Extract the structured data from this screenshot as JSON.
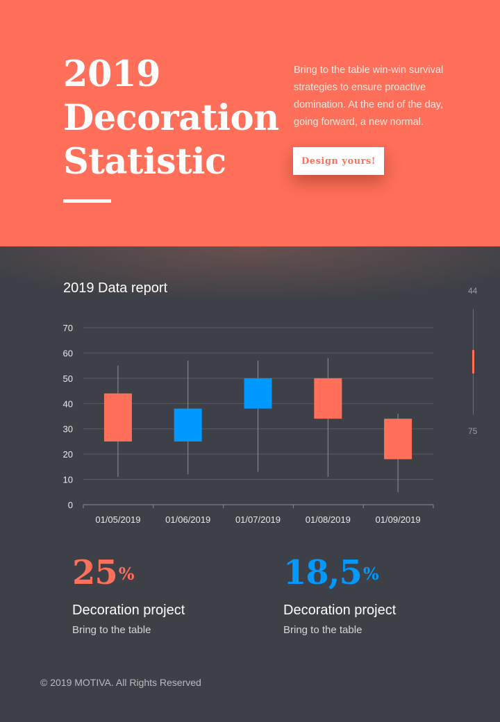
{
  "hero": {
    "title_lines": [
      "2019",
      "Decoration",
      "Statistic"
    ],
    "description": "Bring to the table win-win survival strategies to ensure proactive domination. At the end of the day, going forward, a new normal.",
    "cta_label": "Design yours!",
    "accent": "#ff6f59"
  },
  "report": {
    "title": "2019 Data report"
  },
  "chart_data": {
    "type": "candlestick",
    "categories": [
      "01/05/2019",
      "01/06/2019",
      "01/07/2019",
      "01/08/2019",
      "01/09/2019"
    ],
    "open": [
      44,
      25,
      38,
      50,
      34
    ],
    "close": [
      25,
      38,
      50,
      34,
      18
    ],
    "high": [
      55,
      57,
      57,
      58,
      36
    ],
    "low": [
      11,
      12,
      13,
      11,
      5
    ],
    "ylim": [
      0,
      70
    ],
    "yticks": [
      0,
      10,
      20,
      30,
      40,
      50,
      60,
      70
    ],
    "grid": true,
    "colors": {
      "up": "#0099ff",
      "down": "#ff6f59",
      "grid": "#5a5c63",
      "axis": "#8a8c92",
      "text": "#e9eaed"
    }
  },
  "scroller": {
    "top_label": "44",
    "bottom_label": "75",
    "thumb_color": "#ff6f59"
  },
  "stats": [
    {
      "value": "25",
      "unit": "%",
      "label": "Decoration project",
      "sub": "Bring to the table",
      "color": "#ff6f59"
    },
    {
      "value": "18,5",
      "unit": "%",
      "label": "Decoration project",
      "sub": "Bring to the table",
      "color": "#0099ff"
    }
  ],
  "footer": {
    "text": "2019 MOTIVA. All Rights Reserved"
  }
}
